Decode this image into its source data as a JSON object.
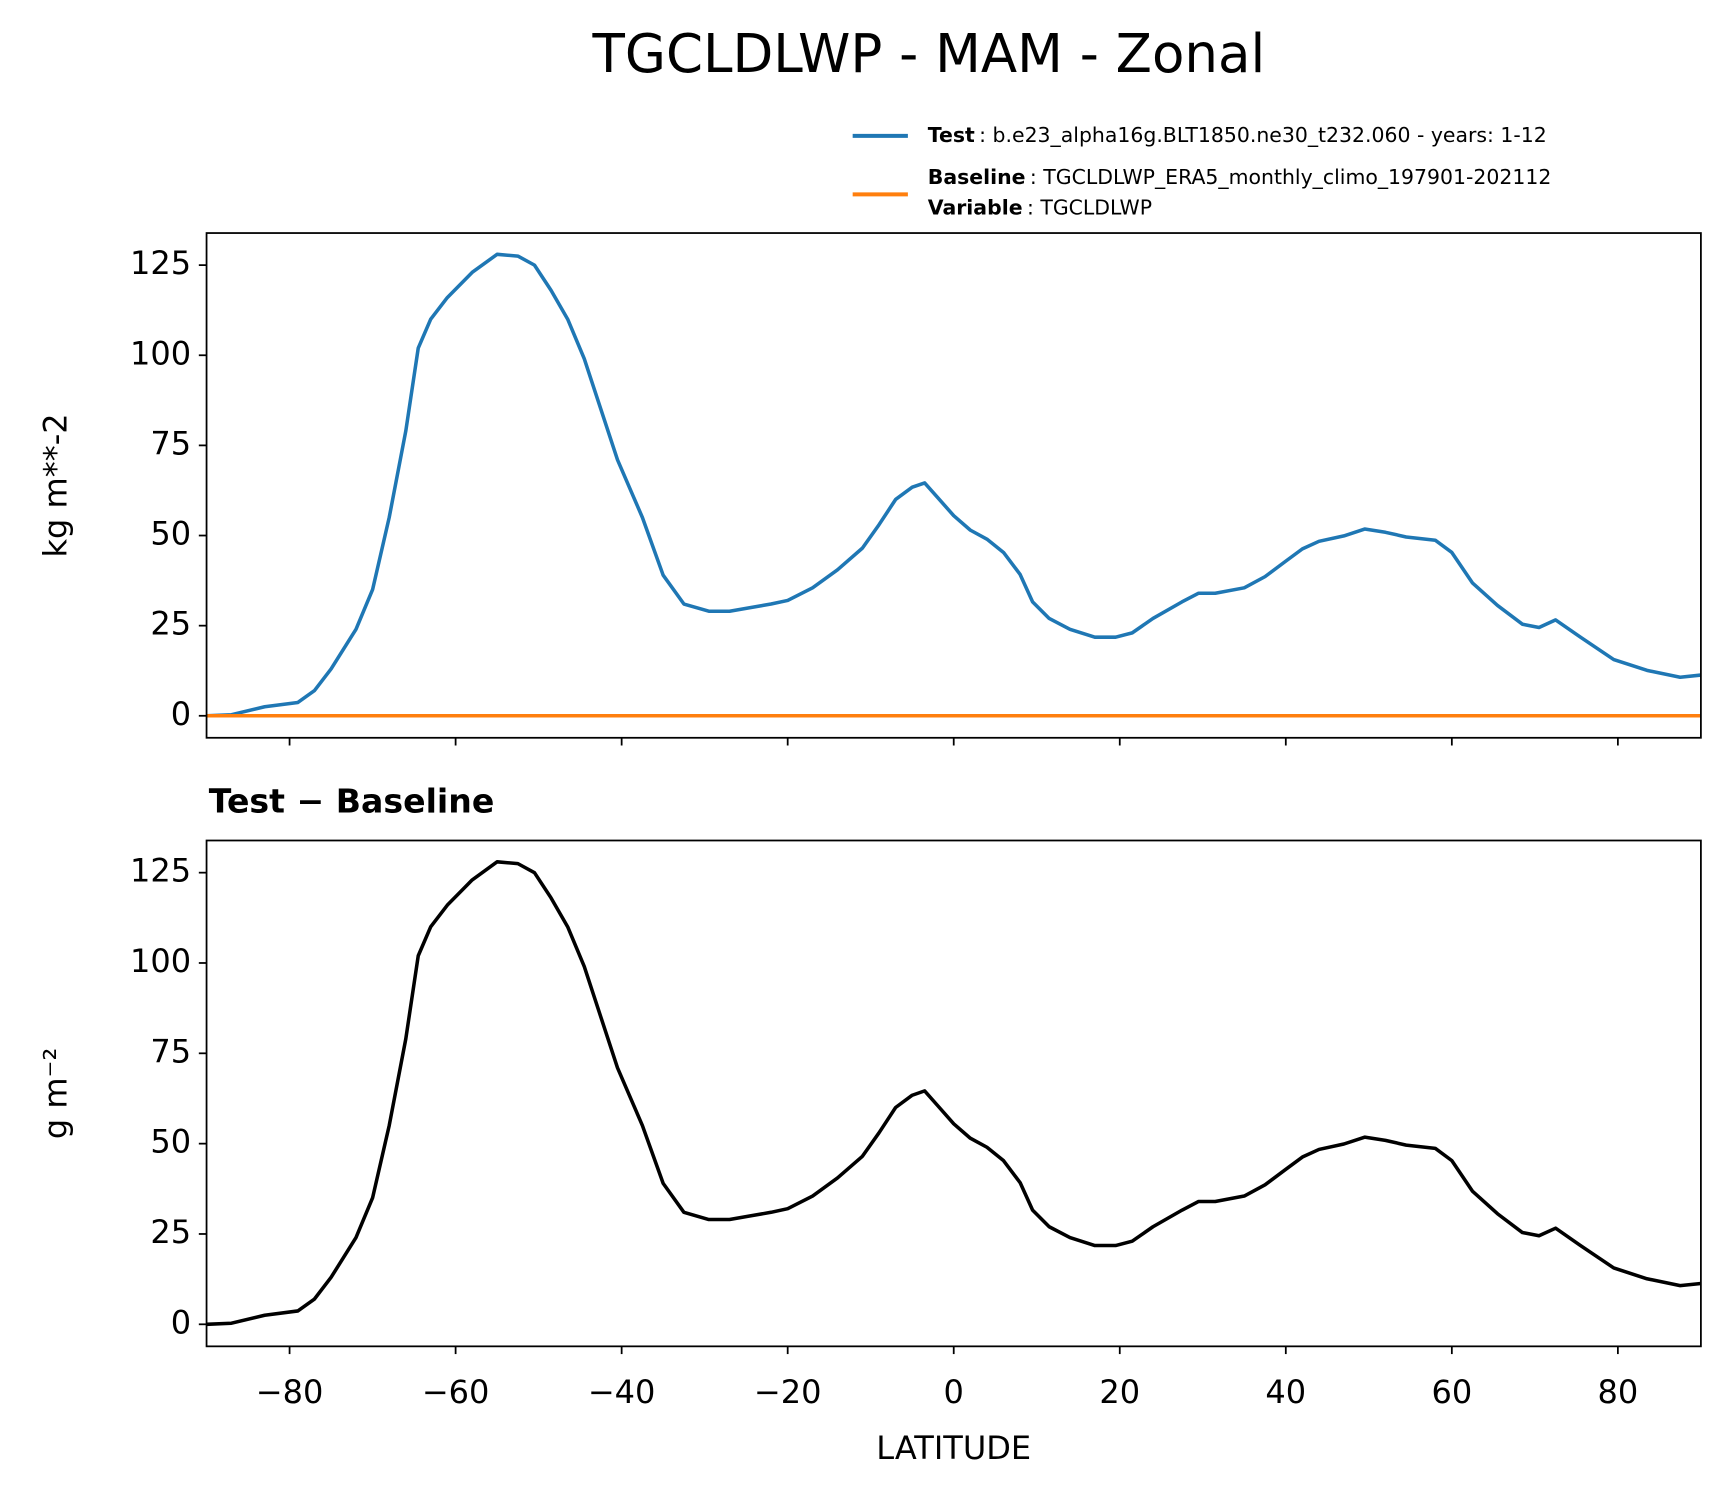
{
  "chart_data": [
    {
      "type": "line",
      "title": "TGCLDLWP - MAM - Zonal",
      "ylabel": "kg m**-2",
      "x": [
        -90,
        -87,
        -83,
        -79,
        -77,
        -75,
        -72,
        -70,
        -68,
        -66,
        -64.5,
        -63,
        -61,
        -58,
        -55,
        -52.5,
        -50.5,
        -48.5,
        -46.5,
        -44.5,
        -42.5,
        -40.5,
        -37.5,
        -35,
        -32.5,
        -29.5,
        -27,
        -24.5,
        -22,
        -20,
        -17,
        -14,
        -11,
        -9,
        -7,
        -5,
        -3.5,
        -2,
        0,
        2,
        4,
        6,
        8,
        9.5,
        11.5,
        14,
        17,
        19.5,
        21.5,
        24,
        27.5,
        29.5,
        31.5,
        35,
        37.5,
        40,
        42,
        44,
        47,
        49.5,
        52,
        54.5,
        58,
        60,
        62.5,
        65.5,
        68.5,
        70.5,
        72.5,
        75.5,
        79.5,
        83.5,
        87.5,
        90
      ],
      "series": [
        {
          "name": "Test",
          "description": ": b.e23_alpha16g.BLT1850.ne30_t232.060 - years: 1-12",
          "color": "#1f77b4",
          "values": [
            0,
            0.3,
            2.5,
            3.7,
            7,
            13,
            24,
            35,
            55,
            79,
            102,
            110,
            116,
            123,
            128,
            127.5,
            125,
            118,
            110,
            99,
            85,
            71,
            55,
            39,
            31,
            29,
            29,
            30,
            31,
            32,
            35.5,
            40.5,
            46.5,
            53,
            60,
            63.4,
            64.6,
            60.7,
            55.5,
            51.5,
            49,
            45.3,
            39.2,
            31.6,
            27,
            24,
            21.8,
            21.8,
            23,
            27,
            31.6,
            34,
            34,
            35.5,
            38.6,
            42.9,
            46.3,
            48.4,
            49.9,
            51.8,
            50.9,
            49.6,
            48.7,
            45.3,
            36.8,
            30.6,
            25.4,
            24.5,
            26.6,
            21.8,
            15.6,
            12.6,
            10.7,
            11.3
          ]
        },
        {
          "name": "Baseline",
          "description": ": TGCLDLWP_ERA5_monthly_climo_197901-202112",
          "color": "#ff7f0e",
          "values": [
            0,
            0,
            0,
            0,
            0,
            0,
            0,
            0,
            0,
            0,
            0,
            0,
            0,
            0,
            0,
            0,
            0,
            0,
            0,
            0,
            0,
            0,
            0,
            0,
            0,
            0,
            0,
            0,
            0,
            0,
            0,
            0,
            0,
            0,
            0,
            0,
            0,
            0,
            0,
            0,
            0,
            0,
            0,
            0,
            0,
            0,
            0,
            0,
            0,
            0,
            0,
            0,
            0,
            0,
            0,
            0,
            0,
            0,
            0,
            0,
            0,
            0,
            0,
            0,
            0,
            0,
            0,
            0,
            0,
            0,
            0,
            0,
            0,
            0
          ]
        }
      ],
      "legend_variable": {
        "label": "Variable",
        "text": ": TGCLDLWP"
      },
      "xlim": [
        -90,
        90
      ],
      "ylim": [
        -6.1,
        133.9
      ],
      "yticks": [
        0,
        25,
        50,
        75,
        100,
        125
      ]
    },
    {
      "type": "line",
      "title": "Test − Baseline",
      "ylabel": "g m⁻²",
      "xlabel": "LATITUDE",
      "x": [
        -90,
        -87,
        -83,
        -79,
        -77,
        -75,
        -72,
        -70,
        -68,
        -66,
        -64.5,
        -63,
        -61,
        -58,
        -55,
        -52.5,
        -50.5,
        -48.5,
        -46.5,
        -44.5,
        -42.5,
        -40.5,
        -37.5,
        -35,
        -32.5,
        -29.5,
        -27,
        -24.5,
        -22,
        -20,
        -17,
        -14,
        -11,
        -9,
        -7,
        -5,
        -3.5,
        -2,
        0,
        2,
        4,
        6,
        8,
        9.5,
        11.5,
        14,
        17,
        19.5,
        21.5,
        24,
        27.5,
        29.5,
        31.5,
        35,
        37.5,
        40,
        42,
        44,
        47,
        49.5,
        52,
        54.5,
        58,
        60,
        62.5,
        65.5,
        68.5,
        70.5,
        72.5,
        75.5,
        79.5,
        83.5,
        87.5,
        90
      ],
      "series": [
        {
          "color": "#000000",
          "values": [
            0,
            0.3,
            2.5,
            3.7,
            7,
            13,
            24,
            35,
            55,
            79,
            102,
            110,
            116,
            123,
            128,
            127.5,
            125,
            118,
            110,
            99,
            85,
            71,
            55,
            39,
            31,
            29,
            29,
            30,
            31,
            32,
            35.5,
            40.5,
            46.5,
            53,
            60,
            63.4,
            64.6,
            60.7,
            55.5,
            51.5,
            49,
            45.3,
            39.2,
            31.6,
            27,
            24,
            21.8,
            21.8,
            23,
            27,
            31.6,
            34,
            34,
            35.5,
            38.6,
            42.9,
            46.3,
            48.4,
            49.9,
            51.8,
            50.9,
            49.6,
            48.7,
            45.3,
            36.8,
            30.6,
            25.4,
            24.5,
            26.6,
            21.8,
            15.6,
            12.6,
            10.7,
            11.3
          ]
        }
      ],
      "xlim": [
        -90,
        90
      ],
      "ylim": [
        -6.1,
        133.9
      ],
      "yticks": [
        0,
        25,
        50,
        75,
        100,
        125
      ],
      "xticks": [
        {
          "value": -80,
          "label": "−80"
        },
        {
          "value": -60,
          "label": "−60"
        },
        {
          "value": -40,
          "label": "−40"
        },
        {
          "value": -20,
          "label": "−20"
        },
        0,
        20,
        40,
        60,
        80
      ]
    }
  ]
}
